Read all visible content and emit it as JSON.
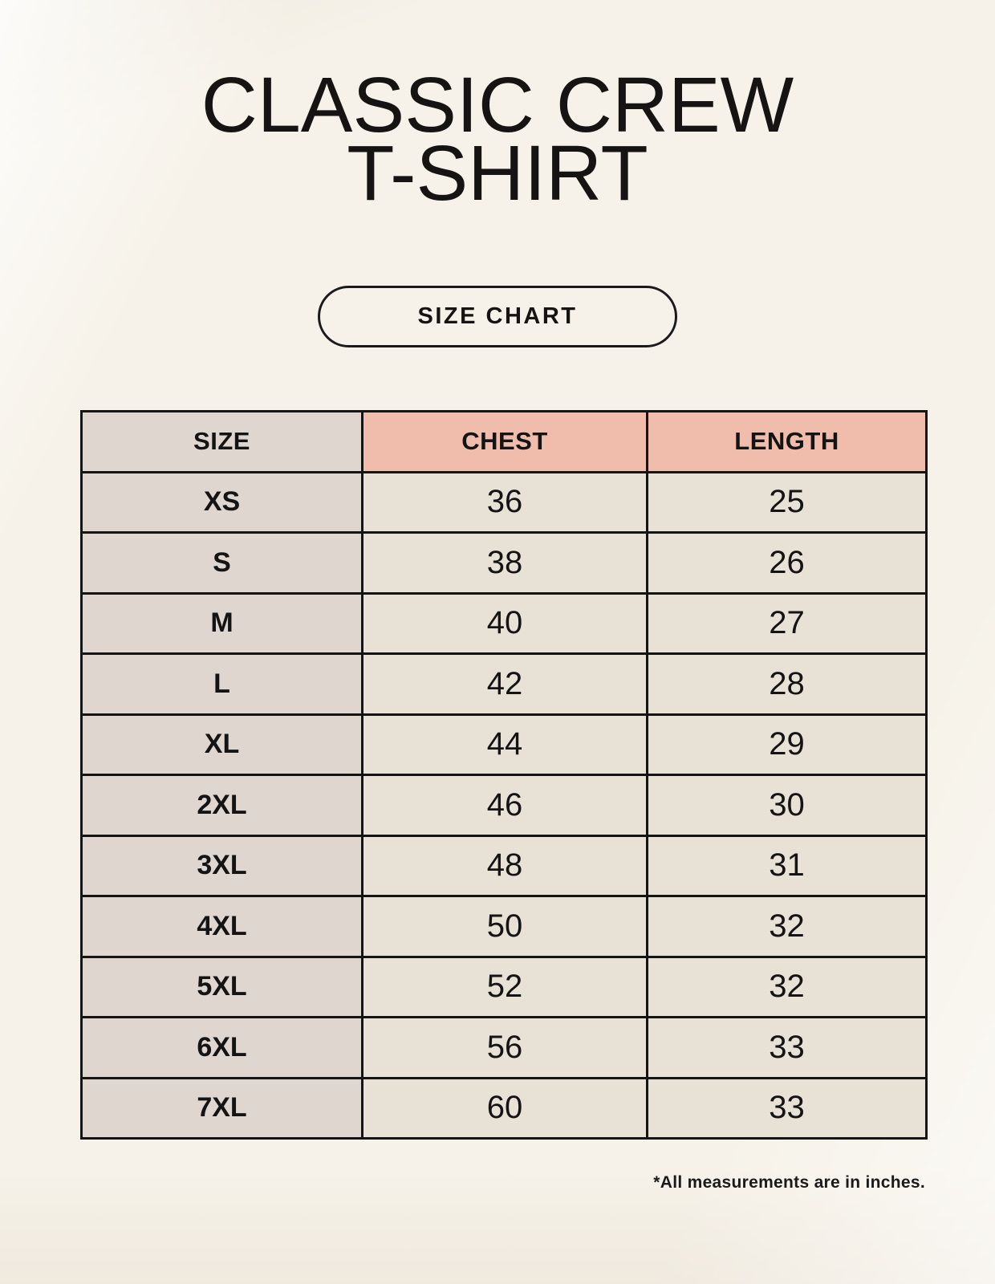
{
  "header": {
    "title_line1": "CLASSIC CREW",
    "title_line2": "T-SHIRT",
    "button_label": "SIZE CHART"
  },
  "footer": {
    "note": "*All measurements are in inches."
  },
  "colors": {
    "page_background": "#f6f2e9",
    "accent_header": "#f0bcab",
    "size_column": "#ded6cf",
    "cell_background": "#e8e1d5",
    "border": "#141414",
    "text": "#141414"
  },
  "chart_data": {
    "type": "table",
    "title": "SIZE CHART",
    "units": "inches",
    "columns": [
      "SIZE",
      "CHEST",
      "LENGTH"
    ],
    "rows": [
      {
        "size": "XS",
        "chest": 36,
        "length": 25
      },
      {
        "size": "S",
        "chest": 38,
        "length": 26
      },
      {
        "size": "M",
        "chest": 40,
        "length": 27
      },
      {
        "size": "L",
        "chest": 42,
        "length": 28
      },
      {
        "size": "XL",
        "chest": 44,
        "length": 29
      },
      {
        "size": "2XL",
        "chest": 46,
        "length": 30
      },
      {
        "size": "3XL",
        "chest": 48,
        "length": 31
      },
      {
        "size": "4XL",
        "chest": 50,
        "length": 32
      },
      {
        "size": "5XL",
        "chest": 52,
        "length": 32
      },
      {
        "size": "6XL",
        "chest": 56,
        "length": 33
      },
      {
        "size": "7XL",
        "chest": 60,
        "length": 33
      }
    ]
  }
}
